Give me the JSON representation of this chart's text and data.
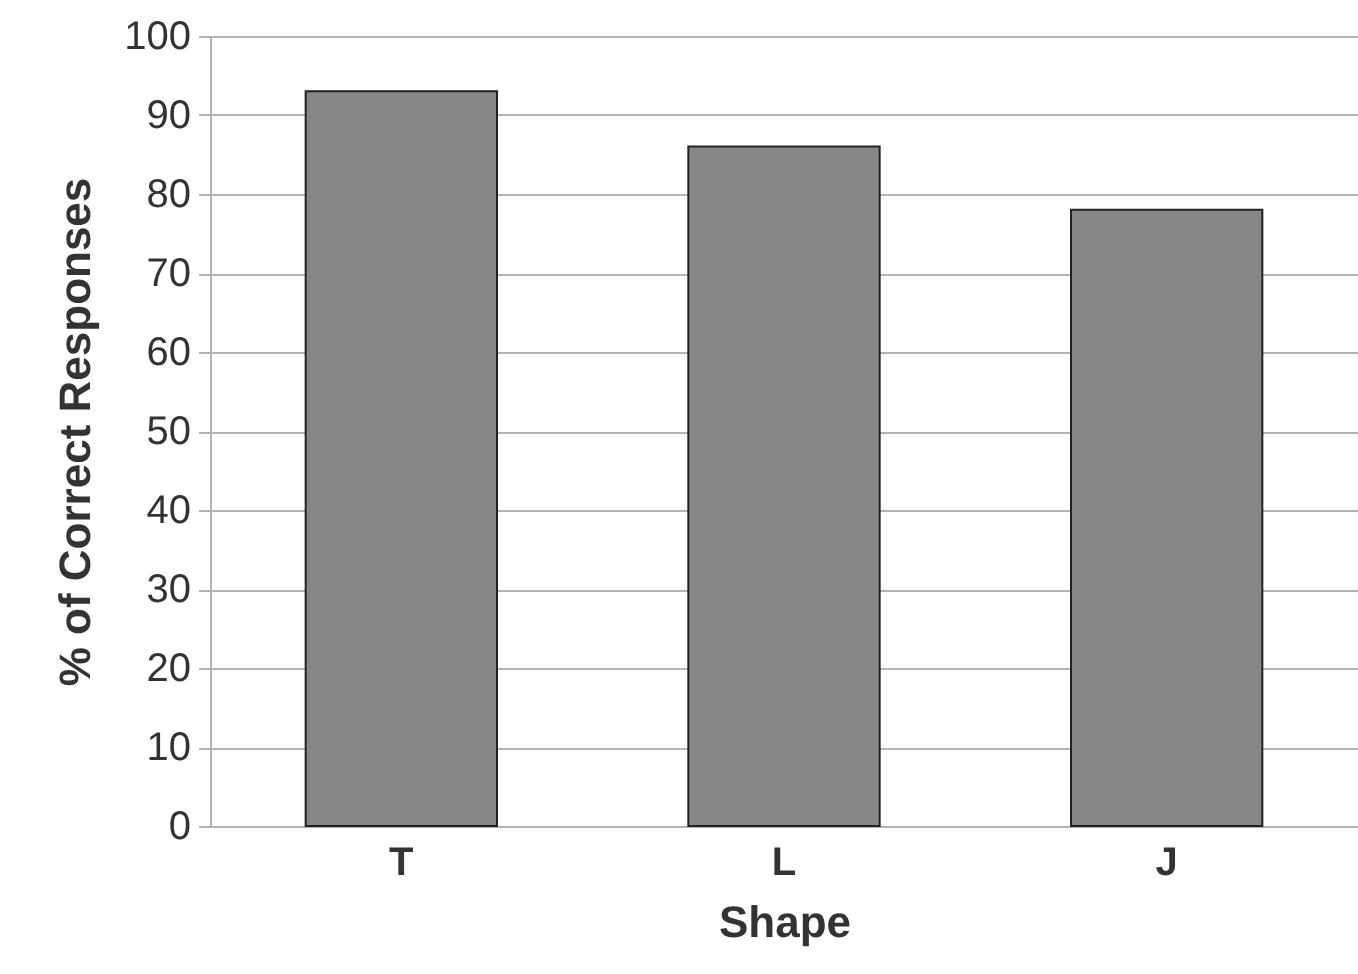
{
  "chart_data": {
    "type": "bar",
    "xlabel": "Shape",
    "ylabel": "% of Correct Responses",
    "categories": [
      "T",
      "L",
      "J"
    ],
    "values": [
      93,
      86,
      78
    ],
    "color": "#878787",
    "ylim": [
      0,
      100
    ],
    "yticks": [
      0,
      10,
      20,
      30,
      40,
      50,
      60,
      70,
      80,
      90,
      100
    ],
    "grid": "y"
  }
}
